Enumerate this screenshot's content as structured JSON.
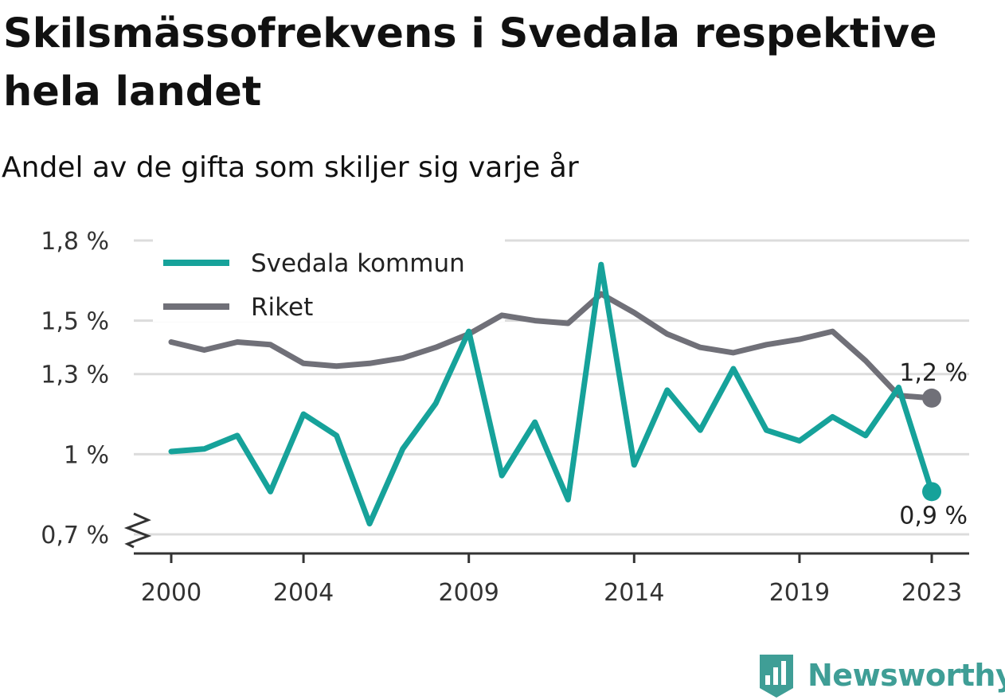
{
  "title": "Skilsmässofrekvens i Svedala respektive hela landet",
  "subtitle": "Andel av de gifta som skiljer sig varje år",
  "colors": {
    "svedala": "#16a29a",
    "riket": "#707078",
    "grid": "#dcdcdc",
    "axis": "#333333"
  },
  "brand": {
    "name": "Newsworthy",
    "icon": "newsworthy-logo-icon"
  },
  "chart_data": {
    "type": "line",
    "x": [
      2000,
      2001,
      2002,
      2003,
      2004,
      2005,
      2006,
      2007,
      2008,
      2009,
      2010,
      2011,
      2012,
      2013,
      2014,
      2015,
      2016,
      2017,
      2018,
      2019,
      2020,
      2021,
      2022,
      2023
    ],
    "x_ticks": [
      2000,
      2004,
      2009,
      2014,
      2019,
      2023
    ],
    "y_ticks": [
      {
        "value": 0.7,
        "label": "0,7 %"
      },
      {
        "value": 1.0,
        "label": "1 %"
      },
      {
        "value": 1.3,
        "label": "1,3 %"
      },
      {
        "value": 1.5,
        "label": "1,5 %"
      },
      {
        "value": 1.8,
        "label": "1,8 %"
      }
    ],
    "ylim": [
      0.62,
      1.8
    ],
    "y_axis_break": true,
    "grid": true,
    "legend_position": "top-left",
    "series": [
      {
        "key": "svedala",
        "name": "Svedala kommun",
        "values": [
          1.01,
          1.02,
          1.07,
          0.86,
          1.15,
          1.07,
          0.74,
          1.02,
          1.19,
          1.46,
          0.92,
          1.12,
          0.83,
          1.71,
          0.96,
          1.24,
          1.09,
          1.32,
          1.09,
          1.05,
          1.14,
          1.07,
          1.25,
          0.86
        ],
        "end_label": "0,9 %"
      },
      {
        "key": "riket",
        "name": "Riket",
        "values": [
          1.42,
          1.39,
          1.42,
          1.41,
          1.34,
          1.33,
          1.34,
          1.36,
          1.4,
          1.45,
          1.52,
          1.5,
          1.49,
          1.6,
          1.53,
          1.45,
          1.4,
          1.38,
          1.41,
          1.43,
          1.46,
          1.35,
          1.22,
          1.21
        ],
        "end_label": "1,2 %"
      }
    ]
  }
}
